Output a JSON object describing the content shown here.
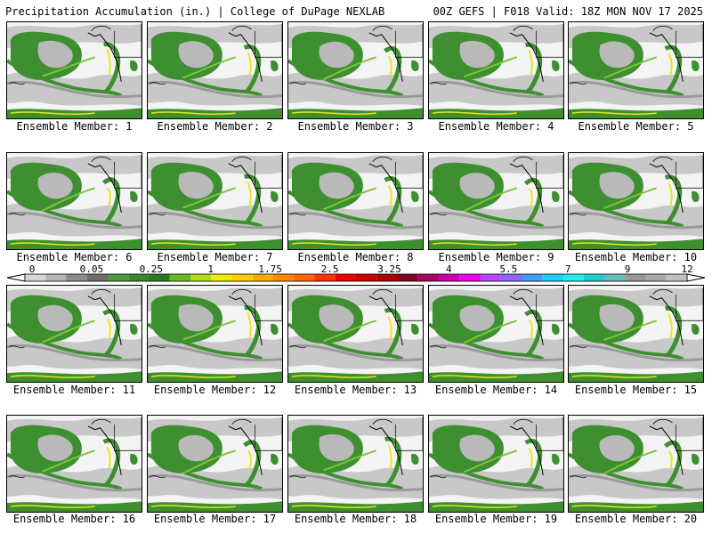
{
  "header": {
    "title_left": "Precipitation Accumulation (in.) | College of DuPage NEXLAB",
    "title_right": "00Z GEFS | F018 Valid: 18Z MON NOV 17 2025"
  },
  "panels": [
    {
      "label": "Ensemble Member: 1"
    },
    {
      "label": "Ensemble Member: 2"
    },
    {
      "label": "Ensemble Member: 3"
    },
    {
      "label": "Ensemble Member: 4"
    },
    {
      "label": "Ensemble Member: 5"
    },
    {
      "label": "Ensemble Member: 6"
    },
    {
      "label": "Ensemble Member: 7"
    },
    {
      "label": "Ensemble Member: 8"
    },
    {
      "label": "Ensemble Member: 9"
    },
    {
      "label": "Ensemble Member: 10"
    },
    {
      "label": "Ensemble Member: 11"
    },
    {
      "label": "Ensemble Member: 12"
    },
    {
      "label": "Ensemble Member: 13"
    },
    {
      "label": "Ensemble Member: 14"
    },
    {
      "label": "Ensemble Member: 15"
    },
    {
      "label": "Ensemble Member: 16"
    },
    {
      "label": "Ensemble Member: 17"
    },
    {
      "label": "Ensemble Member: 18"
    },
    {
      "label": "Ensemble Member: 19"
    },
    {
      "label": "Ensemble Member: 20"
    }
  ],
  "colorbar": {
    "tick_labels": [
      "0",
      "0.05",
      "0.25",
      "1",
      "1.75",
      "2.5",
      "3.25",
      "4",
      "5.5",
      "7",
      "9",
      "12"
    ],
    "colors": [
      "#d6d6d6",
      "#b4b4b4",
      "#8c8c8c",
      "#6e6e6e",
      "#4f9a3e",
      "#3a8a2c",
      "#2a7a20",
      "#66bb22",
      "#aadd22",
      "#eeee00",
      "#ffcc00",
      "#ffaa00",
      "#ff8800",
      "#ff6600",
      "#ff3300",
      "#ee0000",
      "#cc0000",
      "#aa0000",
      "#880022",
      "#aa0066",
      "#cc00aa",
      "#ee00ee",
      "#bb44ff",
      "#8866ff",
      "#4499ff",
      "#22ccff",
      "#22eeee",
      "#22cccc",
      "#66bbbb",
      "#999999",
      "#aaaaaa",
      "#c0c0c0"
    ]
  },
  "map": {
    "land_color": "#f4f4f4",
    "light_precip_color": "#c8c8c8",
    "mid_precip_color": "#9a9a9a",
    "green_color": "#3d8f2f",
    "bright_green_color": "#7fc43a",
    "yellow_color": "#e8e818",
    "coast_color": "#000000"
  }
}
